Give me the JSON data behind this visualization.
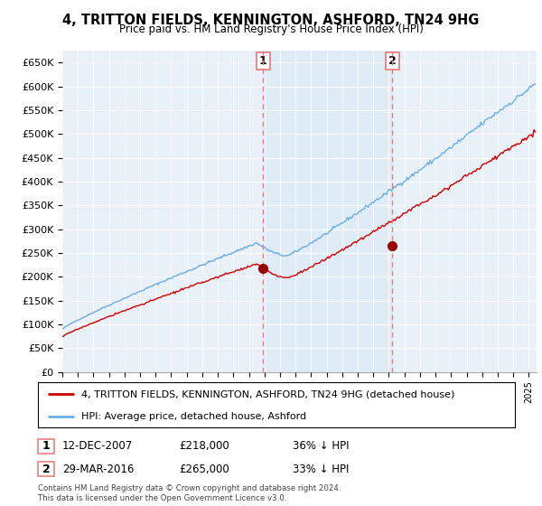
{
  "title": "4, TRITTON FIELDS, KENNINGTON, ASHFORD, TN24 9HG",
  "subtitle": "Price paid vs. HM Land Registry's House Price Index (HPI)",
  "ylabel_ticks": [
    "£0",
    "£50K",
    "£100K",
    "£150K",
    "£200K",
    "£250K",
    "£300K",
    "£350K",
    "£400K",
    "£450K",
    "£500K",
    "£550K",
    "£600K",
    "£650K"
  ],
  "ytick_vals": [
    0,
    50000,
    100000,
    150000,
    200000,
    250000,
    300000,
    350000,
    400000,
    450000,
    500000,
    550000,
    600000,
    650000
  ],
  "ylim": [
    0,
    675000
  ],
  "xlim_start": 1995.0,
  "xlim_end": 2025.5,
  "legend_line1": "4, TRITTON FIELDS, KENNINGTON, ASHFORD, TN24 9HG (detached house)",
  "legend_line2": "HPI: Average price, detached house, Ashford",
  "sale1_label": "1",
  "sale1_date": "12-DEC-2007",
  "sale1_price": "£218,000",
  "sale1_pct": "36% ↓ HPI",
  "sale2_label": "2",
  "sale2_date": "29-MAR-2016",
  "sale2_price": "£265,000",
  "sale2_pct": "33% ↓ HPI",
  "footer": "Contains HM Land Registry data © Crown copyright and database right 2024.\nThis data is licensed under the Open Government Licence v3.0.",
  "sale1_x": 2007.92,
  "sale1_y": 218000,
  "sale2_x": 2016.21,
  "sale2_y": 265000,
  "hpi_color": "#6aade4",
  "price_color": "#cc0000",
  "vline_color": "#e88080",
  "shade_color": "#d8eaf8",
  "bg_color": "#e8f0f8",
  "plot_bg": "#ffffff",
  "grid_color": "#ffffff"
}
